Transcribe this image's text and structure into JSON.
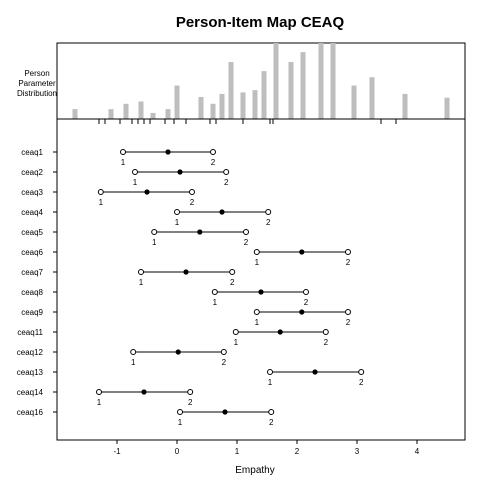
{
  "chart_data": {
    "type": "person-item-map",
    "title": "Person-Item Map CEAQ",
    "side_label_lines": [
      "Person",
      "Parameter",
      "Distribution"
    ],
    "xlabel": "Empathy",
    "xlim": [
      -1.8,
      4.6
    ],
    "x_ticks": [
      -1,
      0,
      1,
      2,
      3,
      4
    ],
    "person_distribution": {
      "bin_centers": [
        -1.7,
        -1.1,
        -0.85,
        -0.6,
        -0.4,
        -0.15,
        0.0,
        0.4,
        0.6,
        0.75,
        0.9,
        1.1,
        1.3,
        1.45,
        1.65,
        1.9,
        2.1,
        2.4,
        2.6,
        2.95,
        3.25,
        3.8,
        4.5
      ],
      "bin_heights": [
        0.13,
        0.13,
        0.2,
        0.23,
        0.08,
        0.13,
        0.44,
        0.29,
        0.2,
        0.33,
        0.75,
        0.35,
        0.38,
        0.63,
        1.0,
        0.75,
        0.88,
        1.0,
        1.0,
        0.44,
        0.55,
        0.33,
        0.28
      ]
    },
    "person_rug": [
      -1.3,
      -1.2,
      -0.95,
      -0.75,
      -0.65,
      -0.55,
      -0.45,
      -0.2,
      -0.05,
      0.15,
      0.55,
      0.65,
      1.1,
      1.55,
      1.6,
      3.4,
      3.65
    ],
    "items": [
      {
        "label": "ceaq1",
        "location": -0.15,
        "thresholds": [
          -0.9,
          0.6
        ]
      },
      {
        "label": "ceaq2",
        "location": 0.05,
        "thresholds": [
          -0.7,
          0.82
        ]
      },
      {
        "label": "ceaq3",
        "location": -0.5,
        "thresholds": [
          -1.27,
          0.25
        ]
      },
      {
        "label": "ceaq4",
        "location": 0.75,
        "thresholds": [
          0.0,
          1.52
        ]
      },
      {
        "label": "ceaq5",
        "location": 0.38,
        "thresholds": [
          -0.38,
          1.15
        ]
      },
      {
        "label": "ceaq6",
        "location": 2.08,
        "thresholds": [
          1.33,
          2.85
        ]
      },
      {
        "label": "ceaq7",
        "location": 0.15,
        "thresholds": [
          -0.6,
          0.92
        ]
      },
      {
        "label": "ceaq8",
        "location": 1.4,
        "thresholds": [
          0.63,
          2.15
        ]
      },
      {
        "label": "ceaq9",
        "location": 2.08,
        "thresholds": [
          1.33,
          2.85
        ]
      },
      {
        "label": "ceaq11",
        "location": 1.72,
        "thresholds": [
          0.98,
          2.48
        ]
      },
      {
        "label": "ceaq12",
        "location": 0.02,
        "thresholds": [
          -0.73,
          0.78
        ]
      },
      {
        "label": "ceaq13",
        "location": 2.3,
        "thresholds": [
          1.55,
          3.07
        ]
      },
      {
        "label": "ceaq14",
        "location": -0.55,
        "thresholds": [
          -1.3,
          0.22
        ]
      },
      {
        "label": "ceaq16",
        "location": 0.8,
        "thresholds": [
          0.05,
          1.57
        ]
      }
    ],
    "threshold_labels": [
      "1",
      "2"
    ],
    "colors": {
      "histogram_bar": "#bebebe",
      "line": "#000000"
    }
  }
}
